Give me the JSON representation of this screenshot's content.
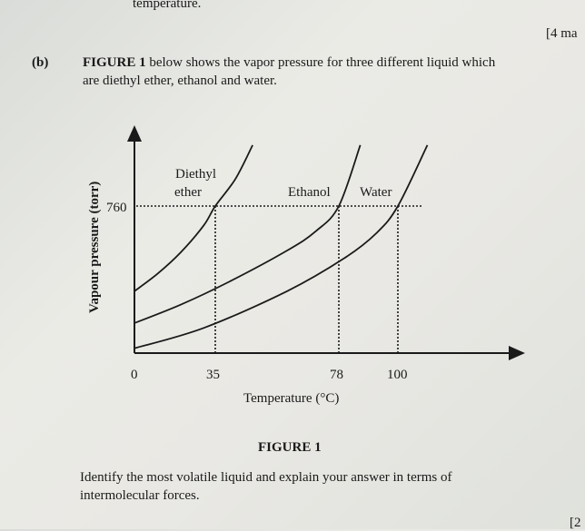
{
  "header": {
    "prev_line": "temperature.",
    "marks_a": "[4 ma"
  },
  "question": {
    "part": "(b)",
    "figure_ref": "FIGURE 1",
    "text_line1": " below shows the vapor pressure for three different liquid which",
    "text_line2": "are diethyl ether, ethanol and water."
  },
  "figure_caption": "FIGURE 1",
  "prompt": {
    "line1": "Identify the most volatile liquid and explain your answer in terms of",
    "line2": "intermolecular forces."
  },
  "marks_b": "[2",
  "chart_data": {
    "type": "line",
    "xlabel": "Temperature (°C)",
    "ylabel": "Vapour pressure (torr)",
    "x_ticks": [
      "0",
      "35",
      "78",
      "100"
    ],
    "y_ticks": [
      "760"
    ],
    "reference_line": {
      "y": 760,
      "style": "dotted"
    },
    "drop_lines_x": [
      35,
      78,
      100
    ],
    "series": [
      {
        "name_line1": "Diethyl",
        "name_line2": "ether",
        "points": [
          [
            0,
            320
          ],
          [
            10,
            410
          ],
          [
            20,
            520
          ],
          [
            30,
            660
          ],
          [
            35,
            760
          ],
          [
            42,
            900
          ],
          [
            48,
            1075
          ]
        ]
      },
      {
        "name": "Ethanol",
        "points": [
          [
            0,
            155
          ],
          [
            20,
            250
          ],
          [
            40,
            370
          ],
          [
            60,
            530
          ],
          [
            70,
            630
          ],
          [
            78,
            760
          ],
          [
            86,
            1075
          ]
        ]
      },
      {
        "name": "Water",
        "points": [
          [
            0,
            25
          ],
          [
            30,
            130
          ],
          [
            60,
            320
          ],
          [
            80,
            490
          ],
          [
            92,
            620
          ],
          [
            100,
            760
          ],
          [
            111,
            1075
          ]
        ]
      }
    ]
  }
}
